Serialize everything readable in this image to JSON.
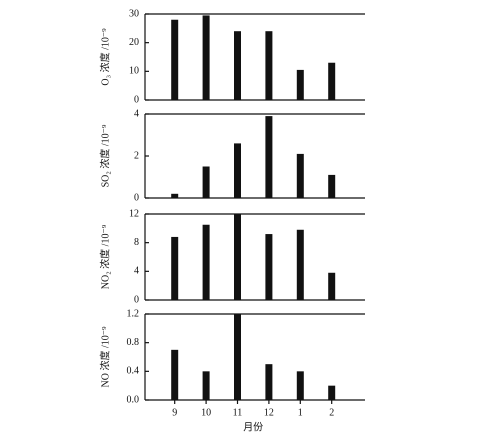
{
  "chart_data": [
    {
      "type": "bar",
      "ylabel": "O₃ 浓度 /10⁻⁹",
      "values": [
        28,
        29.5,
        24,
        24,
        10.5,
        13
      ],
      "color": "#111111",
      "ylim": [
        0,
        30
      ],
      "yticks": [
        0,
        10,
        20,
        30
      ]
    },
    {
      "type": "bar",
      "ylabel": "SO₂ 浓度 /10⁻⁹",
      "values": [
        0.2,
        1.5,
        2.6,
        3.9,
        2.1,
        1.1
      ],
      "color": "#111111",
      "ylim": [
        0,
        4
      ],
      "yticks": [
        0,
        2,
        4
      ]
    },
    {
      "type": "bar",
      "ylabel": "NO₂ 浓度 /10⁻⁹",
      "values": [
        8.8,
        10.5,
        12,
        9.2,
        9.8,
        3.8
      ],
      "color": "#111111",
      "ylim": [
        0,
        12
      ],
      "yticks": [
        0,
        4,
        8,
        12
      ]
    },
    {
      "type": "bar",
      "ylabel": "NO 浓度 /10⁻⁹",
      "xlabel": "月份",
      "categories": [
        "9",
        "10",
        "11",
        "12",
        "1",
        "2"
      ],
      "values": [
        0.7,
        0.4,
        1.2,
        0.5,
        0.4,
        0.2
      ],
      "color": "#111111",
      "ylim": [
        0,
        1.2
      ],
      "yticks": [
        {
          "value": 0,
          "label": "0.0"
        },
        0.4,
        0.8,
        1.2
      ]
    }
  ]
}
